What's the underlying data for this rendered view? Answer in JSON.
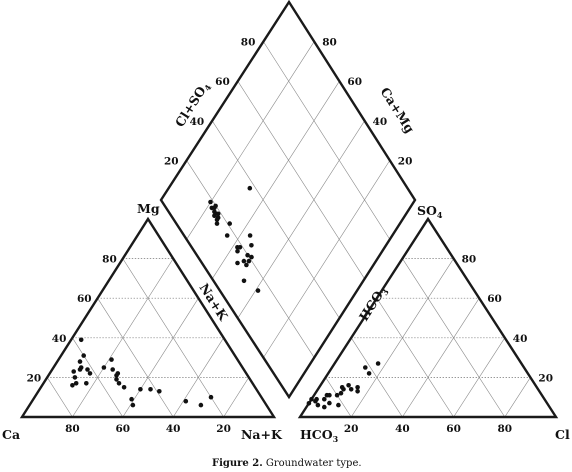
{
  "figure": {
    "caption_label": "Figure 2.",
    "caption_text": " Groundwater type."
  },
  "colors": {
    "ink": "#111111",
    "grid": "#8a8a8a",
    "background": "#ffffff"
  },
  "diagram": {
    "type": "piper",
    "cation_triangle": {
      "vertex_left": "Ca",
      "vertex_right": "Na+K",
      "vertex_top": "Mg",
      "bottom_ticks": [
        "80",
        "60",
        "40",
        "20"
      ],
      "left_ticks": [
        "80",
        "60",
        "40",
        "20"
      ]
    },
    "anion_triangle": {
      "vertex_left_main": "HCO",
      "vertex_left_sub": "3",
      "vertex_right": "Cl",
      "vertex_top_main": "SO",
      "vertex_top_sub": "4",
      "bottom_ticks": [
        "20",
        "40",
        "60",
        "80"
      ],
      "right_ticks": [
        "80",
        "60",
        "40",
        "20"
      ]
    },
    "diamond": {
      "label_upper_left_main": "Cl+SO",
      "label_upper_left_sub": "4",
      "label_upper_right": "Ca+Mg",
      "label_lower_left": "Na+K",
      "label_lower_right_main": "HCO",
      "label_lower_right_sub": "3",
      "upper_left_ticks": [
        "80",
        "60",
        "40",
        "20"
      ],
      "upper_right_ticks": [
        "80",
        "60",
        "40",
        "20"
      ]
    }
  },
  "chart_data": {
    "type": "scatter",
    "title": "",
    "series": [
      {
        "name": "",
        "panel": "cation",
        "units": "percent of cations: Ca, Mg, Na+K",
        "points": [
          {
            "ca": 68,
            "mg": 23,
            "na_k": 9
          },
          {
            "ca": 66,
            "mg": 17,
            "na_k": 17
          },
          {
            "ca": 69,
            "mg": 20,
            "na_k": 11
          },
          {
            "ca": 64,
            "mg": 25,
            "na_k": 11
          },
          {
            "ca": 65,
            "mg": 24,
            "na_k": 11
          },
          {
            "ca": 62,
            "mg": 22,
            "na_k": 16
          },
          {
            "ca": 62,
            "mg": 24,
            "na_k": 14
          },
          {
            "ca": 63,
            "mg": 28,
            "na_k": 9
          },
          {
            "ca": 70,
            "mg": 17,
            "na_k": 13
          },
          {
            "ca": 72,
            "mg": 16,
            "na_k": 12
          },
          {
            "ca": 60,
            "mg": 31,
            "na_k": 9
          },
          {
            "ca": 57,
            "mg": 39,
            "na_k": 4
          },
          {
            "ca": 55,
            "mg": 25,
            "na_k": 20
          },
          {
            "ca": 52,
            "mg": 21,
            "na_k": 27
          },
          {
            "ca": 53,
            "mg": 19,
            "na_k": 28
          },
          {
            "ca": 51,
            "mg": 22,
            "na_k": 27
          },
          {
            "ca": 52,
            "mg": 24,
            "na_k": 24
          },
          {
            "ca": 50,
            "mg": 29,
            "na_k": 21
          },
          {
            "ca": 53,
            "mg": 17,
            "na_k": 30
          },
          {
            "ca": 52,
            "mg": 15,
            "na_k": 33
          },
          {
            "ca": 52,
            "mg": 9,
            "na_k": 39
          },
          {
            "ca": 53,
            "mg": 6,
            "na_k": 41
          },
          {
            "ca": 46,
            "mg": 14,
            "na_k": 40
          },
          {
            "ca": 42,
            "mg": 14,
            "na_k": 44
          },
          {
            "ca": 39,
            "mg": 13,
            "na_k": 48
          },
          {
            "ca": 31,
            "mg": 8,
            "na_k": 61
          },
          {
            "ca": 26,
            "mg": 6,
            "na_k": 68
          },
          {
            "ca": 20,
            "mg": 10,
            "na_k": 70
          }
        ]
      },
      {
        "name": "",
        "panel": "anion",
        "units": "percent of anions: HCO3, SO4, Cl",
        "points": [
          {
            "hco3": 94,
            "so4": 7,
            "cl": 0
          },
          {
            "hco3": 90,
            "so4": 8,
            "cl": 2
          },
          {
            "hco3": 91,
            "so4": 9,
            "cl": 0
          },
          {
            "hco3": 90,
            "so4": 6,
            "cl": 4
          },
          {
            "hco3": 89,
            "so4": 9,
            "cl": 2
          },
          {
            "hco3": 88,
            "so4": 5,
            "cl": 7
          },
          {
            "hco3": 86,
            "so4": 9,
            "cl": 5
          },
          {
            "hco3": 85,
            "so4": 7,
            "cl": 8
          },
          {
            "hco3": 84,
            "so4": 11,
            "cl": 5
          },
          {
            "hco3": 83,
            "so4": 11,
            "cl": 6
          },
          {
            "hco3": 82,
            "so4": 6,
            "cl": 12
          },
          {
            "hco3": 80,
            "so4": 11,
            "cl": 9
          },
          {
            "hco3": 78,
            "so4": 12,
            "cl": 10
          },
          {
            "hco3": 76,
            "so4": 14,
            "cl": 10
          },
          {
            "hco3": 76,
            "so4": 15,
            "cl": 9
          },
          {
            "hco3": 73,
            "so4": 16,
            "cl": 11
          },
          {
            "hco3": 73,
            "so4": 14,
            "cl": 13
          },
          {
            "hco3": 71,
            "so4": 13,
            "cl": 16
          },
          {
            "hco3": 70,
            "so4": 15,
            "cl": 15
          },
          {
            "hco3": 62,
            "so4": 22,
            "cl": 16
          },
          {
            "hco3": 62,
            "so4": 25,
            "cl": 13
          },
          {
            "hco3": 56,
            "so4": 27,
            "cl": 17
          }
        ]
      },
      {
        "name": "",
        "panel": "diamond",
        "units": "percent: Cl+SO4, Ca+Mg",
        "points": [
          {
            "cl_so4": 19,
            "ca_mg": 80
          },
          {
            "cl_so4": 18,
            "ca_mg": 78
          },
          {
            "cl_so4": 19,
            "ca_mg": 77
          },
          {
            "cl_so4": 18,
            "ca_mg": 76
          },
          {
            "cl_so4": 20,
            "ca_mg": 77
          },
          {
            "cl_so4": 18,
            "ca_mg": 75
          },
          {
            "cl_so4": 17,
            "ca_mg": 75
          },
          {
            "cl_so4": 19,
            "ca_mg": 74
          },
          {
            "cl_so4": 18,
            "ca_mg": 73
          },
          {
            "cl_so4": 17,
            "ca_mg": 73
          },
          {
            "cl_so4": 16,
            "ca_mg": 72
          },
          {
            "cl_so4": 38,
            "ca_mg": 68
          },
          {
            "cl_so4": 21,
            "ca_mg": 67
          },
          {
            "cl_so4": 17,
            "ca_mg": 65
          },
          {
            "cl_so4": 18,
            "ca_mg": 58
          },
          {
            "cl_so4": 19,
            "ca_mg": 57
          },
          {
            "cl_so4": 17,
            "ca_mg": 57
          },
          {
            "cl_so4": 19,
            "ca_mg": 50
          },
          {
            "cl_so4": 14,
            "ca_mg": 54
          },
          {
            "cl_so4": 17,
            "ca_mg": 52
          },
          {
            "cl_so4": 17,
            "ca_mg": 50
          },
          {
            "cl_so4": 24,
            "ca_mg": 53
          },
          {
            "cl_so4": 21,
            "ca_mg": 50
          },
          {
            "cl_so4": 26,
            "ca_mg": 56
          },
          {
            "cl_so4": 12,
            "ca_mg": 47
          },
          {
            "cl_so4": 15,
            "ca_mg": 39
          },
          {
            "cl_so4": 20,
            "ca_mg": 52
          }
        ]
      }
    ],
    "axis_ticks": [
      20,
      40,
      60,
      80
    ],
    "grid": true,
    "legend": "none"
  }
}
